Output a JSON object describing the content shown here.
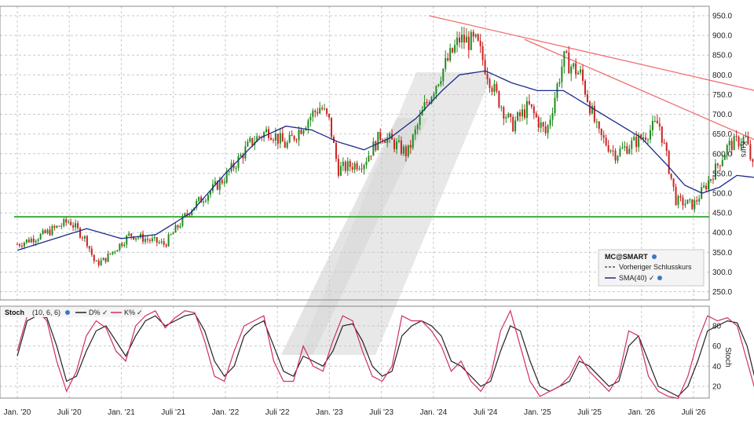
{
  "chart_data": [
    {
      "type": "candlestick",
      "symbol": "MC@SMART",
      "ylabel": "Kurs",
      "ylim": [
        200,
        960
      ],
      "y_ticks": [
        "950.0",
        "900.0",
        "850.0",
        "800.0",
        "750.0",
        "700.0",
        "650.0",
        "600.0",
        "550.0",
        "500.0",
        "450.0",
        "400.0",
        "350.0",
        "300.0",
        "250.0"
      ],
      "x_ticks": [
        "Jan. '20",
        "Juli '20",
        "Jan. '21",
        "Juli '21",
        "Jan. '22",
        "Juli '22",
        "Jan. '23",
        "Juli '23",
        "Jan. '24",
        "Juli '24",
        "Jan. '25",
        "Juli '25",
        "Jan. '26",
        "Juli '26"
      ],
      "price_path": [
        [
          0,
          370
        ],
        [
          3,
          395
        ],
        [
          6,
          430
        ],
        [
          8,
          380
        ],
        [
          9,
          320
        ],
        [
          10,
          330
        ],
        [
          13,
          395
        ],
        [
          17,
          370
        ],
        [
          20,
          460
        ],
        [
          24,
          540
        ],
        [
          27,
          630
        ],
        [
          29,
          660
        ],
        [
          31,
          620
        ],
        [
          34,
          700
        ],
        [
          35,
          720
        ],
        [
          36,
          680
        ],
        [
          37,
          560
        ],
        [
          40,
          580
        ],
        [
          42,
          650
        ],
        [
          45,
          600
        ],
        [
          47,
          720
        ],
        [
          49,
          810
        ],
        [
          51,
          890
        ],
        [
          53,
          880
        ],
        [
          55,
          760
        ],
        [
          57,
          670
        ],
        [
          59,
          720
        ],
        [
          61,
          650
        ],
        [
          63,
          840
        ],
        [
          65,
          800
        ],
        [
          67,
          650
        ],
        [
          69,
          600
        ],
        [
          72,
          640
        ],
        [
          74,
          680
        ],
        [
          76,
          480
        ],
        [
          78,
          470
        ],
        [
          80,
          540
        ],
        [
          82,
          620
        ],
        [
          84,
          640
        ],
        [
          85,
          550
        ],
        [
          86,
          470
        ],
        [
          88,
          500
        ],
        [
          89,
          530
        ],
        [
          90,
          480
        ],
        [
          91,
          460
        ]
      ],
      "series": [
        {
          "name": "Vorheriger Schlusskurs",
          "values": []
        },
        {
          "name": "SMA(40)",
          "path": [
            [
              0,
              355
            ],
            [
              8,
              410
            ],
            [
              12,
              385
            ],
            [
              16,
              395
            ],
            [
              20,
              450
            ],
            [
              24,
              550
            ],
            [
              28,
              640
            ],
            [
              31,
              670
            ],
            [
              34,
              660
            ],
            [
              37,
              630
            ],
            [
              40,
              610
            ],
            [
              43,
              640
            ],
            [
              46,
              690
            ],
            [
              49,
              760
            ],
            [
              51,
              800
            ],
            [
              54,
              810
            ],
            [
              57,
              780
            ],
            [
              60,
              760
            ],
            [
              63,
              760
            ],
            [
              66,
              720
            ],
            [
              69,
              680
            ],
            [
              72,
              640
            ],
            [
              75,
              570
            ],
            [
              77,
              520
            ],
            [
              79,
              500
            ],
            [
              81,
              515
            ],
            [
              83,
              545
            ],
            [
              85,
              540
            ],
            [
              88,
              540
            ],
            [
              91,
              510
            ]
          ]
        }
      ],
      "trendlines": [
        {
          "from": [
            47.5,
            950
          ],
          "to": [
            95,
            710
          ]
        },
        {
          "from": [
            58.5,
            890
          ],
          "to": [
            95,
            540
          ]
        },
        {
          "from": [
            85,
            540
          ],
          "to": [
            95,
            535
          ]
        }
      ],
      "support_level": 440,
      "legend_position": "bottom-right",
      "colors": {
        "up": "#1e8c1e",
        "down": "#cc2222",
        "sma": "#1c2a8c",
        "trendline": "#f07070",
        "support": "#3cae3c",
        "grid": "#c8c8c8"
      }
    },
    {
      "type": "line",
      "title": "Stoch",
      "params": "(10, 6, 6)",
      "ylabel": "Stoch",
      "ylim": [
        0,
        100
      ],
      "y_ticks": [
        "80",
        "60",
        "40",
        "20"
      ],
      "series": [
        {
          "name": "D%",
          "color": "#222222",
          "values": [
            50,
            85,
            90,
            88,
            60,
            25,
            30,
            55,
            75,
            80,
            65,
            50,
            70,
            85,
            90,
            80,
            85,
            90,
            92,
            75,
            45,
            30,
            40,
            70,
            80,
            85,
            60,
            35,
            30,
            50,
            45,
            40,
            55,
            80,
            82,
            65,
            40,
            30,
            35,
            70,
            80,
            85,
            80,
            70,
            45,
            40,
            30,
            20,
            25,
            55,
            80,
            75,
            45,
            20,
            15,
            20,
            25,
            45,
            40,
            30,
            20,
            25,
            60,
            70,
            45,
            20,
            15,
            10,
            20,
            45,
            75,
            80,
            85,
            83,
            60,
            20,
            12,
            20,
            40,
            55,
            30
          ]
        },
        {
          "name": "K%",
          "color": "#d0305a",
          "values": [
            55,
            90,
            95,
            85,
            45,
            15,
            35,
            70,
            85,
            78,
            55,
            45,
            80,
            90,
            95,
            78,
            88,
            95,
            93,
            65,
            30,
            25,
            55,
            80,
            85,
            90,
            45,
            25,
            25,
            60,
            40,
            35,
            65,
            90,
            85,
            55,
            30,
            25,
            40,
            90,
            85,
            85,
            75,
            60,
            35,
            45,
            25,
            15,
            30,
            75,
            95,
            60,
            25,
            10,
            15,
            20,
            30,
            50,
            35,
            25,
            15,
            30,
            75,
            70,
            30,
            15,
            10,
            8,
            30,
            65,
            90,
            85,
            88,
            80,
            45,
            10,
            10,
            25,
            50,
            60,
            25
          ]
        }
      ]
    }
  ]
}
